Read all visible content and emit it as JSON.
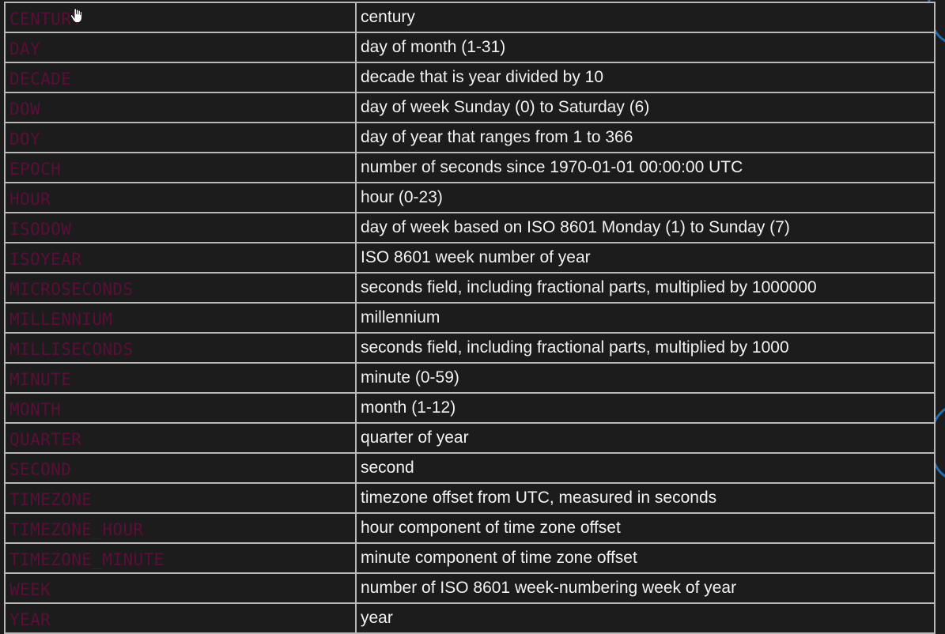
{
  "table": {
    "rows": [
      {
        "field": "CENTURY",
        "description": "century"
      },
      {
        "field": "DAY",
        "description": "day of month (1-31)"
      },
      {
        "field": "DECADE",
        "description": "decade that is year divided by 10"
      },
      {
        "field": "DOW",
        "description": "day of week Sunday (0) to Saturday (6)"
      },
      {
        "field": "DOY",
        "description": "day of year that ranges from 1 to 366"
      },
      {
        "field": "EPOCH",
        "description": "number of seconds since 1970-01-01 00:00:00 UTC"
      },
      {
        "field": "HOUR",
        "description": "hour (0-23)"
      },
      {
        "field": "ISODOW",
        "description": "day of week based on ISO 8601 Monday (1) to Sunday (7)"
      },
      {
        "field": "ISOYEAR",
        "description": "ISO 8601 week number of year"
      },
      {
        "field": "MICROSECONDS",
        "description": "seconds field, including fractional parts, multiplied by 1000000"
      },
      {
        "field": "MILLENNIUM",
        "description": "millennium"
      },
      {
        "field": "MILLISECONDS",
        "description": "seconds field, including fractional parts, multiplied by 1000"
      },
      {
        "field": "MINUTE",
        "description": "minute (0-59)"
      },
      {
        "field": "MONTH",
        "description": "month (1-12)"
      },
      {
        "field": "QUARTER",
        "description": "quarter of year"
      },
      {
        "field": "SECOND",
        "description": "second"
      },
      {
        "field": "TIMEZONE",
        "description": "timezone offset from UTC, measured in seconds"
      },
      {
        "field": "TIMEZONE_HOUR",
        "description": "hour component of time zone offset"
      },
      {
        "field": "TIMEZONE_MINUTE",
        "description": "minute component of time zone offset"
      },
      {
        "field": "WEEK",
        "description": "number of ISO 8601 week-numbering week of year"
      },
      {
        "field": "YEAR",
        "description": "year"
      }
    ]
  },
  "colors": {
    "background": "#1c1c1c",
    "grid": "#b9b9b9",
    "field_text": "#5b0e3a",
    "description_text": "#f2f2f2",
    "accent_arc": "#1f6fb5"
  },
  "icons": {
    "cursor": "hand-cursor-icon"
  }
}
